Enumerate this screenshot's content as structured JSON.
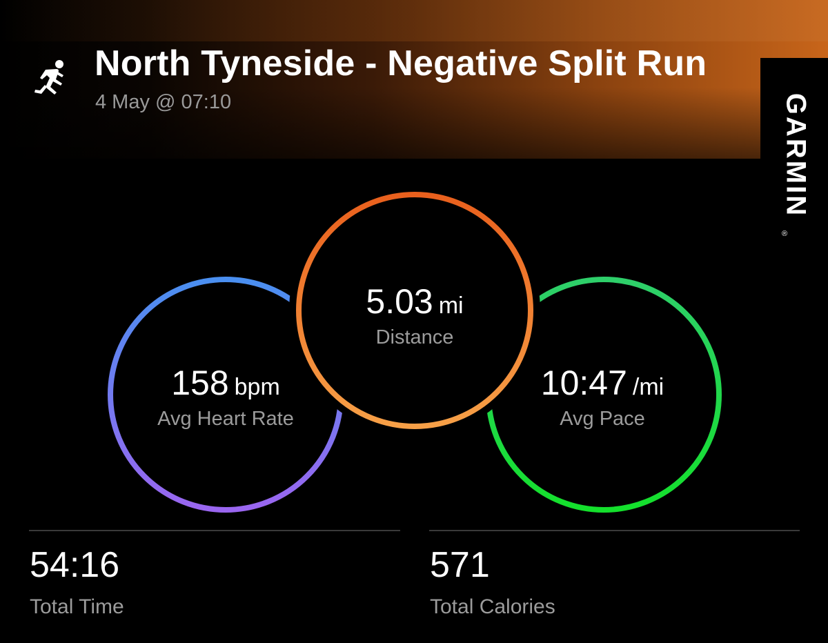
{
  "header": {
    "title": "North Tyneside - Negative Split Run",
    "subtitle": "4 May @ 07:10",
    "activity_icon": "running-person-icon"
  },
  "brand": {
    "name": "GARMIN",
    "registered_mark": "®"
  },
  "metrics": {
    "distance": {
      "value": "5.03",
      "unit": "mi",
      "label": "Distance",
      "color_start": "#e9601d",
      "color_end": "#f7a047"
    },
    "heart_rate": {
      "value": "158",
      "unit": "bpm",
      "label": "Avg Heart Rate",
      "color_start": "#4a8ff0",
      "color_end": "#9a66f0"
    },
    "pace": {
      "value": "10:47",
      "unit": "/mi",
      "label": "Avg Pace",
      "color_start": "#2ecf6a",
      "color_end": "#14e02c"
    }
  },
  "stats": {
    "total_time": {
      "value": "54:16",
      "label": "Total Time"
    },
    "total_calories": {
      "value": "571",
      "label": "Total Calories"
    }
  }
}
